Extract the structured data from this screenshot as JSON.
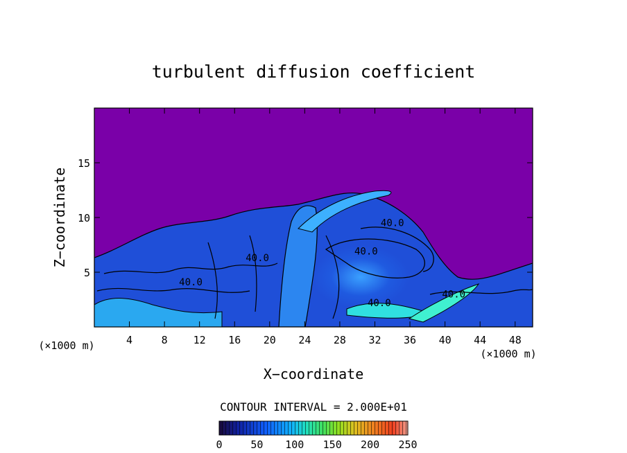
{
  "chart_data": {
    "type": "heatmap",
    "title": "turbulent diffusion coefficient",
    "xlabel": "X−coordinate",
    "ylabel": "Z−coordinate",
    "x_unit_left": "(×1000 m)",
    "x_unit_right": "(×1000 m)",
    "xlim": [
      0,
      50
    ],
    "ylim": [
      0,
      20
    ],
    "x_ticks": [
      4,
      8,
      12,
      16,
      20,
      24,
      28,
      32,
      36,
      40,
      44,
      48
    ],
    "x_tick_labels": [
      "4",
      "8",
      "12",
      "16",
      "20",
      "24",
      "28",
      "32",
      "36",
      "40",
      "44",
      "48"
    ],
    "y_ticks": [
      5,
      10,
      15
    ],
    "y_tick_labels": [
      "5",
      "10",
      "15"
    ],
    "contour_interval_label": "CONTOUR INTERVAL = 2.000E+01",
    "contour_interval": 20,
    "contour_labels": [
      {
        "text": "40.0",
        "x": 34.0,
        "z": 9.2
      },
      {
        "text": "40.0",
        "x": 31.0,
        "z": 6.6
      },
      {
        "text": "40.0",
        "x": 18.6,
        "z": 6.0
      },
      {
        "text": "40.0",
        "x": 11.0,
        "z": 3.8
      },
      {
        "text": "40.0",
        "x": 32.5,
        "z": 1.9
      },
      {
        "text": "40.0",
        "x": 41.0,
        "z": 2.7
      }
    ],
    "colorbar": {
      "min": 0,
      "max": 250,
      "ticks": [
        0,
        50,
        100,
        150,
        200,
        250
      ],
      "tick_labels": [
        "0",
        "50",
        "100",
        "150",
        "200",
        "250"
      ],
      "colors": [
        "#1a0a3a",
        "#1020a0",
        "#1060ff",
        "#10b0ff",
        "#20e0c0",
        "#40e060",
        "#90e020",
        "#e0c020",
        "#f08020",
        "#f04020",
        "#f0a090"
      ]
    },
    "background_color": "#7a00a8",
    "grid": false
  }
}
